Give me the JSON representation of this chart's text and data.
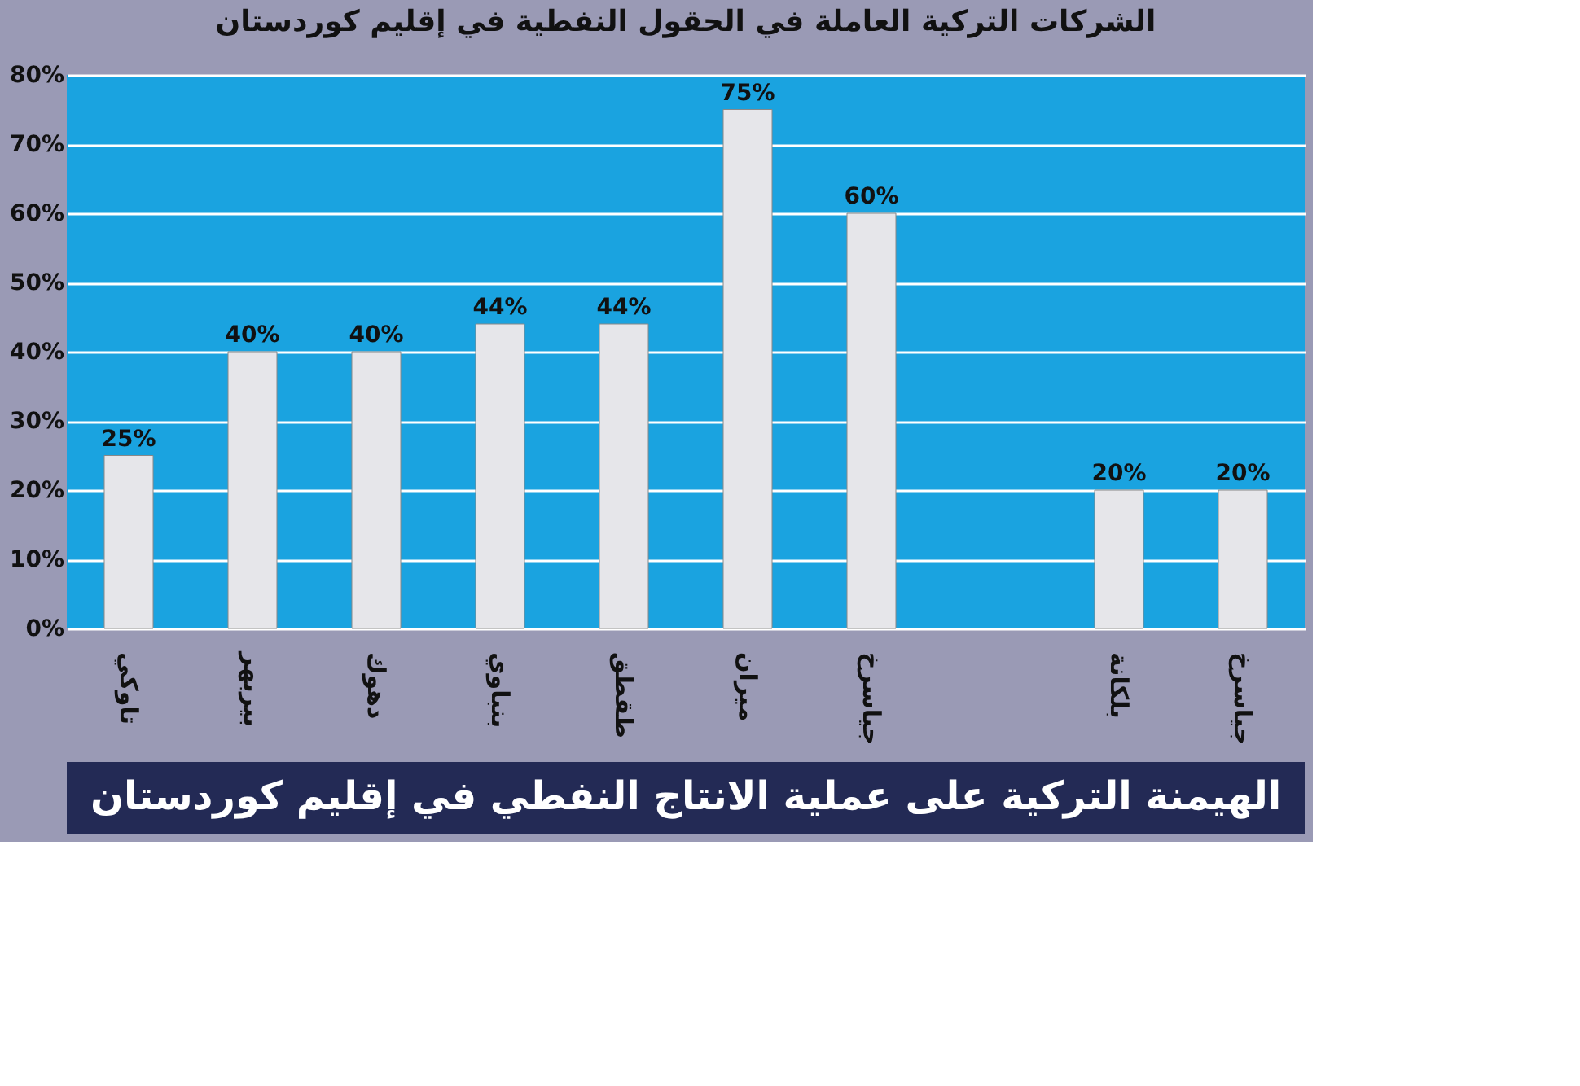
{
  "chart_data": {
    "type": "bar",
    "title": "الشركات التركية العاملة في الحقول النفطية في إقليم كوردستان",
    "categories": [
      "تاوكي",
      "بيربهر",
      "دهوك",
      "بنباوي",
      "طقطق",
      "ميران",
      "جياسرخ",
      null,
      "بلكانة",
      "جياسرخ"
    ],
    "values": [
      25,
      40,
      40,
      44,
      44,
      75,
      60,
      null,
      20,
      20
    ],
    "value_labels": [
      "25%",
      "40%",
      "40%",
      "44%",
      "44%",
      "75%",
      "60%",
      null,
      "20%",
      "20%"
    ],
    "color": "#e6e6ea",
    "ylim": [
      0,
      80
    ],
    "yticks": [
      {
        "value": 0,
        "label": "0%"
      },
      {
        "value": 10,
        "label": "10%"
      },
      {
        "value": 20,
        "label": "20%"
      },
      {
        "value": 30,
        "label": "30%"
      },
      {
        "value": 40,
        "label": "40%"
      },
      {
        "value": 50,
        "label": "50%"
      },
      {
        "value": 60,
        "label": "60%"
      },
      {
        "value": 70,
        "label": "70%"
      },
      {
        "value": 80,
        "label": "80%"
      }
    ],
    "grid": "y",
    "annotations": [
      "الهيمنة التركية على عملية الانتاج النفطي في إقليم كوردستان"
    ]
  }
}
